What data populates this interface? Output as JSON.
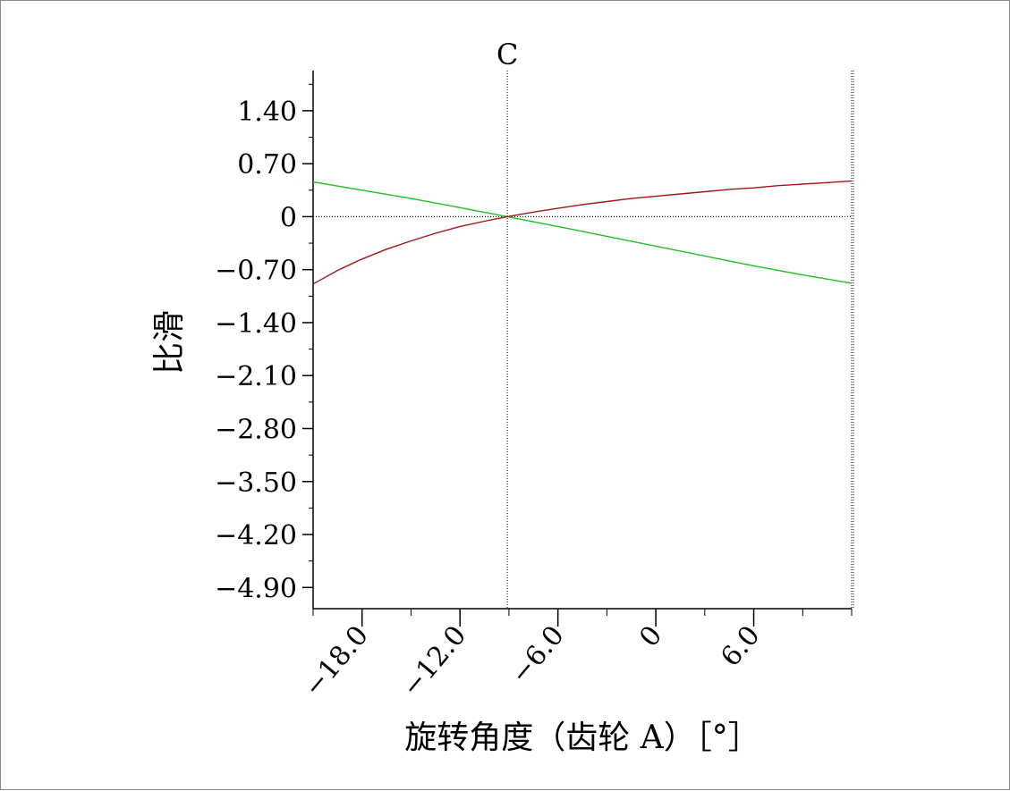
{
  "chart_data": {
    "type": "line",
    "xlabel": "旋转角度（齿轮 A）［°］",
    "ylabel": "比滑",
    "marker": {
      "label": "C",
      "x": -9.1
    },
    "xlim": [
      -21.0,
      12.0
    ],
    "ylim": [
      -5.18,
      1.93
    ],
    "x_ticks": [
      {
        "value": -18.0,
        "label": "−18.0"
      },
      {
        "value": -12.0,
        "label": "−12.0"
      },
      {
        "value": -6.0,
        "label": "−6.0"
      },
      {
        "value": 0,
        "label": "0"
      },
      {
        "value": 6.0,
        "label": "6.0"
      }
    ],
    "y_ticks": [
      {
        "value": 1.4,
        "label": "1.40"
      },
      {
        "value": 0.7,
        "label": "0.70"
      },
      {
        "value": 0,
        "label": "0"
      },
      {
        "value": -0.7,
        "label": "−0.70"
      },
      {
        "value": -1.4,
        "label": "−1.40"
      },
      {
        "value": -2.1,
        "label": "−2.10"
      },
      {
        "value": -2.8,
        "label": "−2.80"
      },
      {
        "value": -3.5,
        "label": "−3.50"
      },
      {
        "value": -4.2,
        "label": "−4.20"
      },
      {
        "value": -4.9,
        "label": "−4.90"
      }
    ],
    "x_minor_step": 3.0,
    "y_minor_step": 0.35,
    "zero_gridline": true,
    "series": [
      {
        "color": "#22c022",
        "x": [
          -21.0,
          -18.0,
          -15.0,
          -12.0,
          -9.1,
          -6.0,
          -3.0,
          0,
          3.0,
          6.0,
          9.0,
          12.0
        ],
        "y": [
          0.46,
          0.35,
          0.24,
          0.12,
          0.0,
          -0.13,
          -0.26,
          -0.39,
          -0.52,
          -0.65,
          -0.77,
          -0.88
        ]
      },
      {
        "color": "#a01818",
        "x": [
          -21.0,
          -19.5,
          -18.0,
          -16.5,
          -15.0,
          -13.5,
          -12.0,
          -10.5,
          -9.1,
          -7.5,
          -6.0,
          -4.5,
          -3.0,
          -1.5,
          0,
          1.5,
          3.0,
          4.5,
          6.0,
          7.5,
          9.0,
          10.5,
          12.0
        ],
        "y": [
          -0.89,
          -0.71,
          -0.56,
          -0.43,
          -0.32,
          -0.22,
          -0.13,
          -0.06,
          0.0,
          0.06,
          0.11,
          0.16,
          0.2,
          0.24,
          0.27,
          0.3,
          0.33,
          0.36,
          0.38,
          0.41,
          0.43,
          0.45,
          0.47
        ]
      }
    ]
  }
}
